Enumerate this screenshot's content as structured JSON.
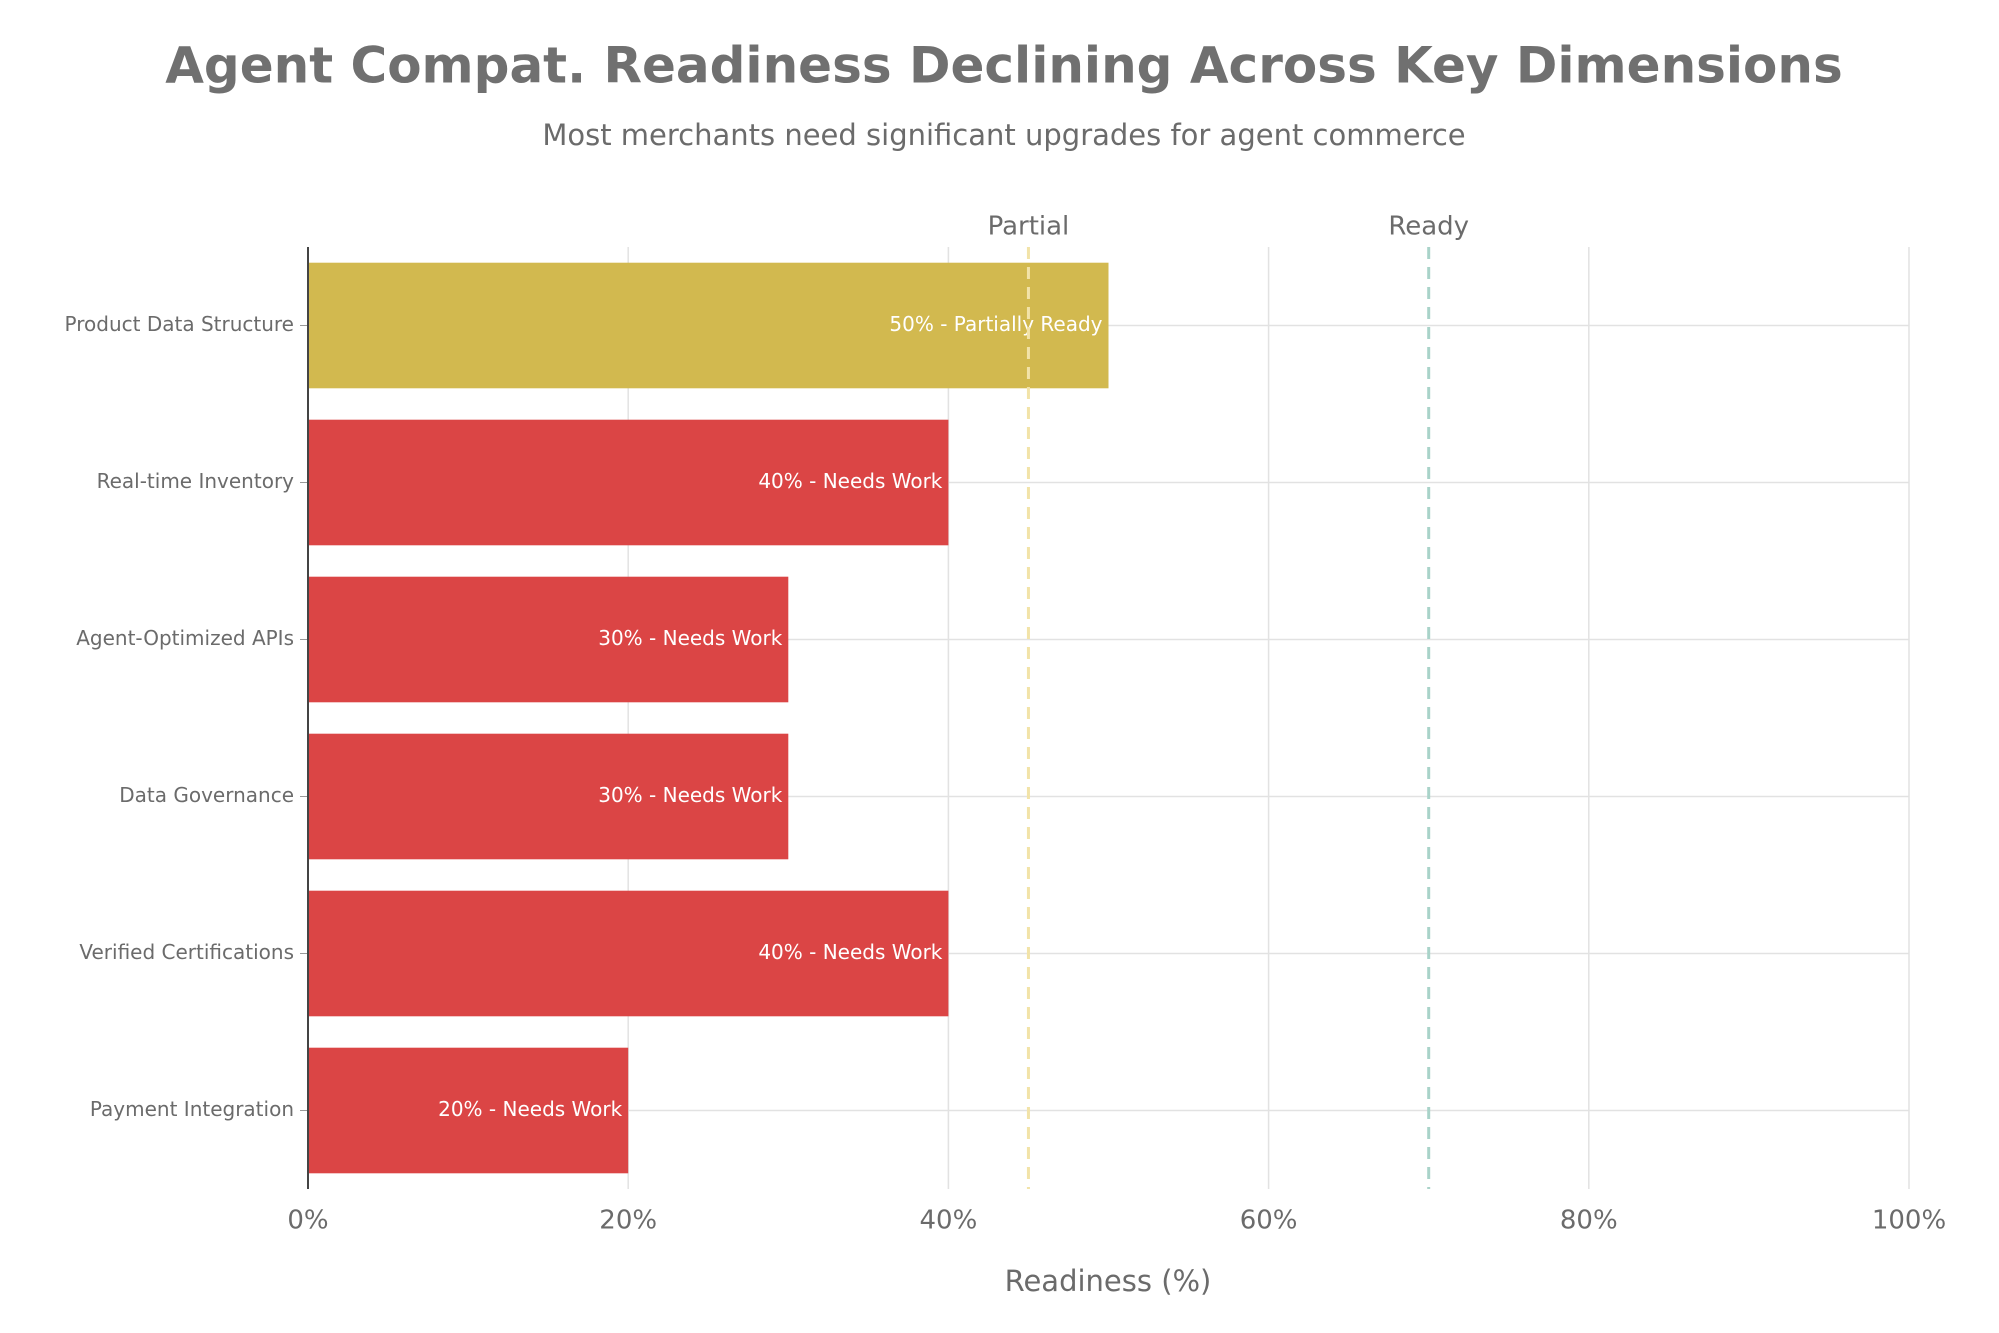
{
  "chart_data": {
    "type": "bar",
    "orientation": "horizontal",
    "title": "Agent Compat. Readiness Declining Across Key Dimensions",
    "subtitle": "Most merchants need significant upgrades for agent commerce",
    "x_label": "Readiness (%)",
    "categories": [
      "Product Data Structure",
      "Real-time Inventory",
      "Agent-Optimized APIs",
      "Data Governance",
      "Verified Certifications",
      "Payment Integration"
    ],
    "values": [
      50,
      40,
      30,
      30,
      40,
      20
    ],
    "value_labels": [
      "50% - Partially Ready",
      "40% - Needs Work",
      "30% - Needs Work",
      "30% - Needs Work",
      "40% - Needs Work",
      "20% - Needs Work"
    ],
    "colors": [
      "#d2b94f",
      "#db4545",
      "#db4545",
      "#db4545",
      "#db4545",
      "#db4545"
    ],
    "xlim": [
      0,
      100
    ],
    "xticks": [
      {
        "value": 0,
        "label": "0%"
      },
      {
        "value": 20,
        "label": "20%"
      },
      {
        "value": 40,
        "label": "40%"
      },
      {
        "value": 60,
        "label": "60%"
      },
      {
        "value": 80,
        "label": "80%"
      },
      {
        "value": 100,
        "label": "100%"
      }
    ],
    "reference_lines": [
      {
        "value": 45,
        "label": "Partial",
        "color": "#f2e3a8"
      },
      {
        "value": 70,
        "label": "Ready",
        "color": "#a9d3c9"
      }
    ],
    "grid": true
  }
}
